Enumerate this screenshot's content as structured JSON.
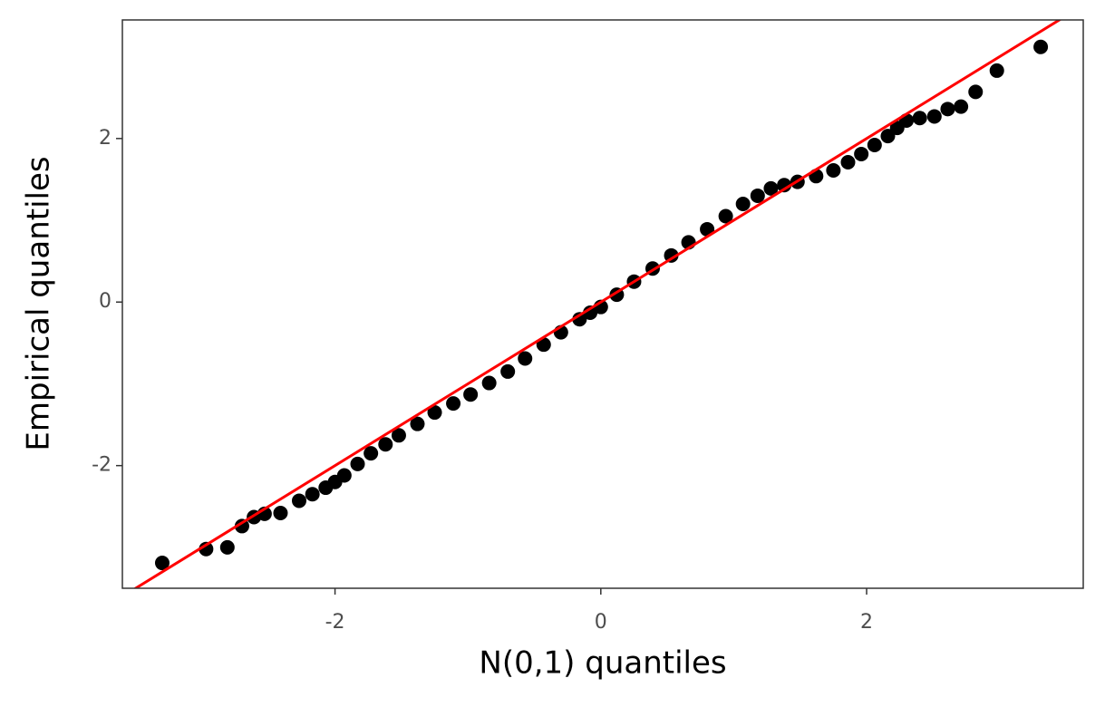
{
  "chart_data": {
    "type": "scatter",
    "x_label": "N(0,1) quantiles",
    "y_label": "Empirical quantiles",
    "xlim": [
      -3.6,
      3.63
    ],
    "ylim": [
      -3.5,
      3.45
    ],
    "xticks": [
      -2,
      0,
      2
    ],
    "yticks": [
      -2,
      0,
      2
    ],
    "color": "#000000",
    "reference_line": {
      "slope": 1,
      "intercept": 0,
      "color": "#ff0000"
    },
    "x": [
      -3.3,
      -2.97,
      -2.81,
      -2.7,
      -2.61,
      -2.53,
      -2.41,
      -2.27,
      -2.17,
      -2.07,
      -2.0,
      -1.93,
      -1.83,
      -1.73,
      -1.62,
      -1.52,
      -1.38,
      -1.25,
      -1.11,
      -0.98,
      -0.84,
      -0.7,
      -0.57,
      -0.43,
      -0.3,
      -0.16,
      -0.08,
      0.0,
      0.12,
      0.25,
      0.39,
      0.53,
      0.66,
      0.8,
      0.94,
      1.07,
      1.18,
      1.28,
      1.38,
      1.48,
      1.62,
      1.75,
      1.86,
      1.96,
      2.06,
      2.16,
      2.23,
      2.3,
      2.4,
      2.51,
      2.61,
      2.71,
      2.82,
      2.98,
      3.31
    ],
    "values": [
      -3.19,
      -3.02,
      -3.0,
      -2.74,
      -2.63,
      -2.59,
      -2.58,
      -2.43,
      -2.35,
      -2.27,
      -2.2,
      -2.12,
      -1.98,
      -1.85,
      -1.74,
      -1.63,
      -1.49,
      -1.35,
      -1.24,
      -1.13,
      -0.99,
      -0.85,
      -0.69,
      -0.52,
      -0.37,
      -0.21,
      -0.13,
      -0.06,
      0.09,
      0.25,
      0.41,
      0.57,
      0.73,
      0.89,
      1.05,
      1.2,
      1.3,
      1.39,
      1.43,
      1.47,
      1.54,
      1.61,
      1.71,
      1.81,
      1.92,
      2.03,
      2.13,
      2.22,
      2.25,
      2.27,
      2.36,
      2.39,
      2.57,
      2.83,
      3.12
    ]
  }
}
